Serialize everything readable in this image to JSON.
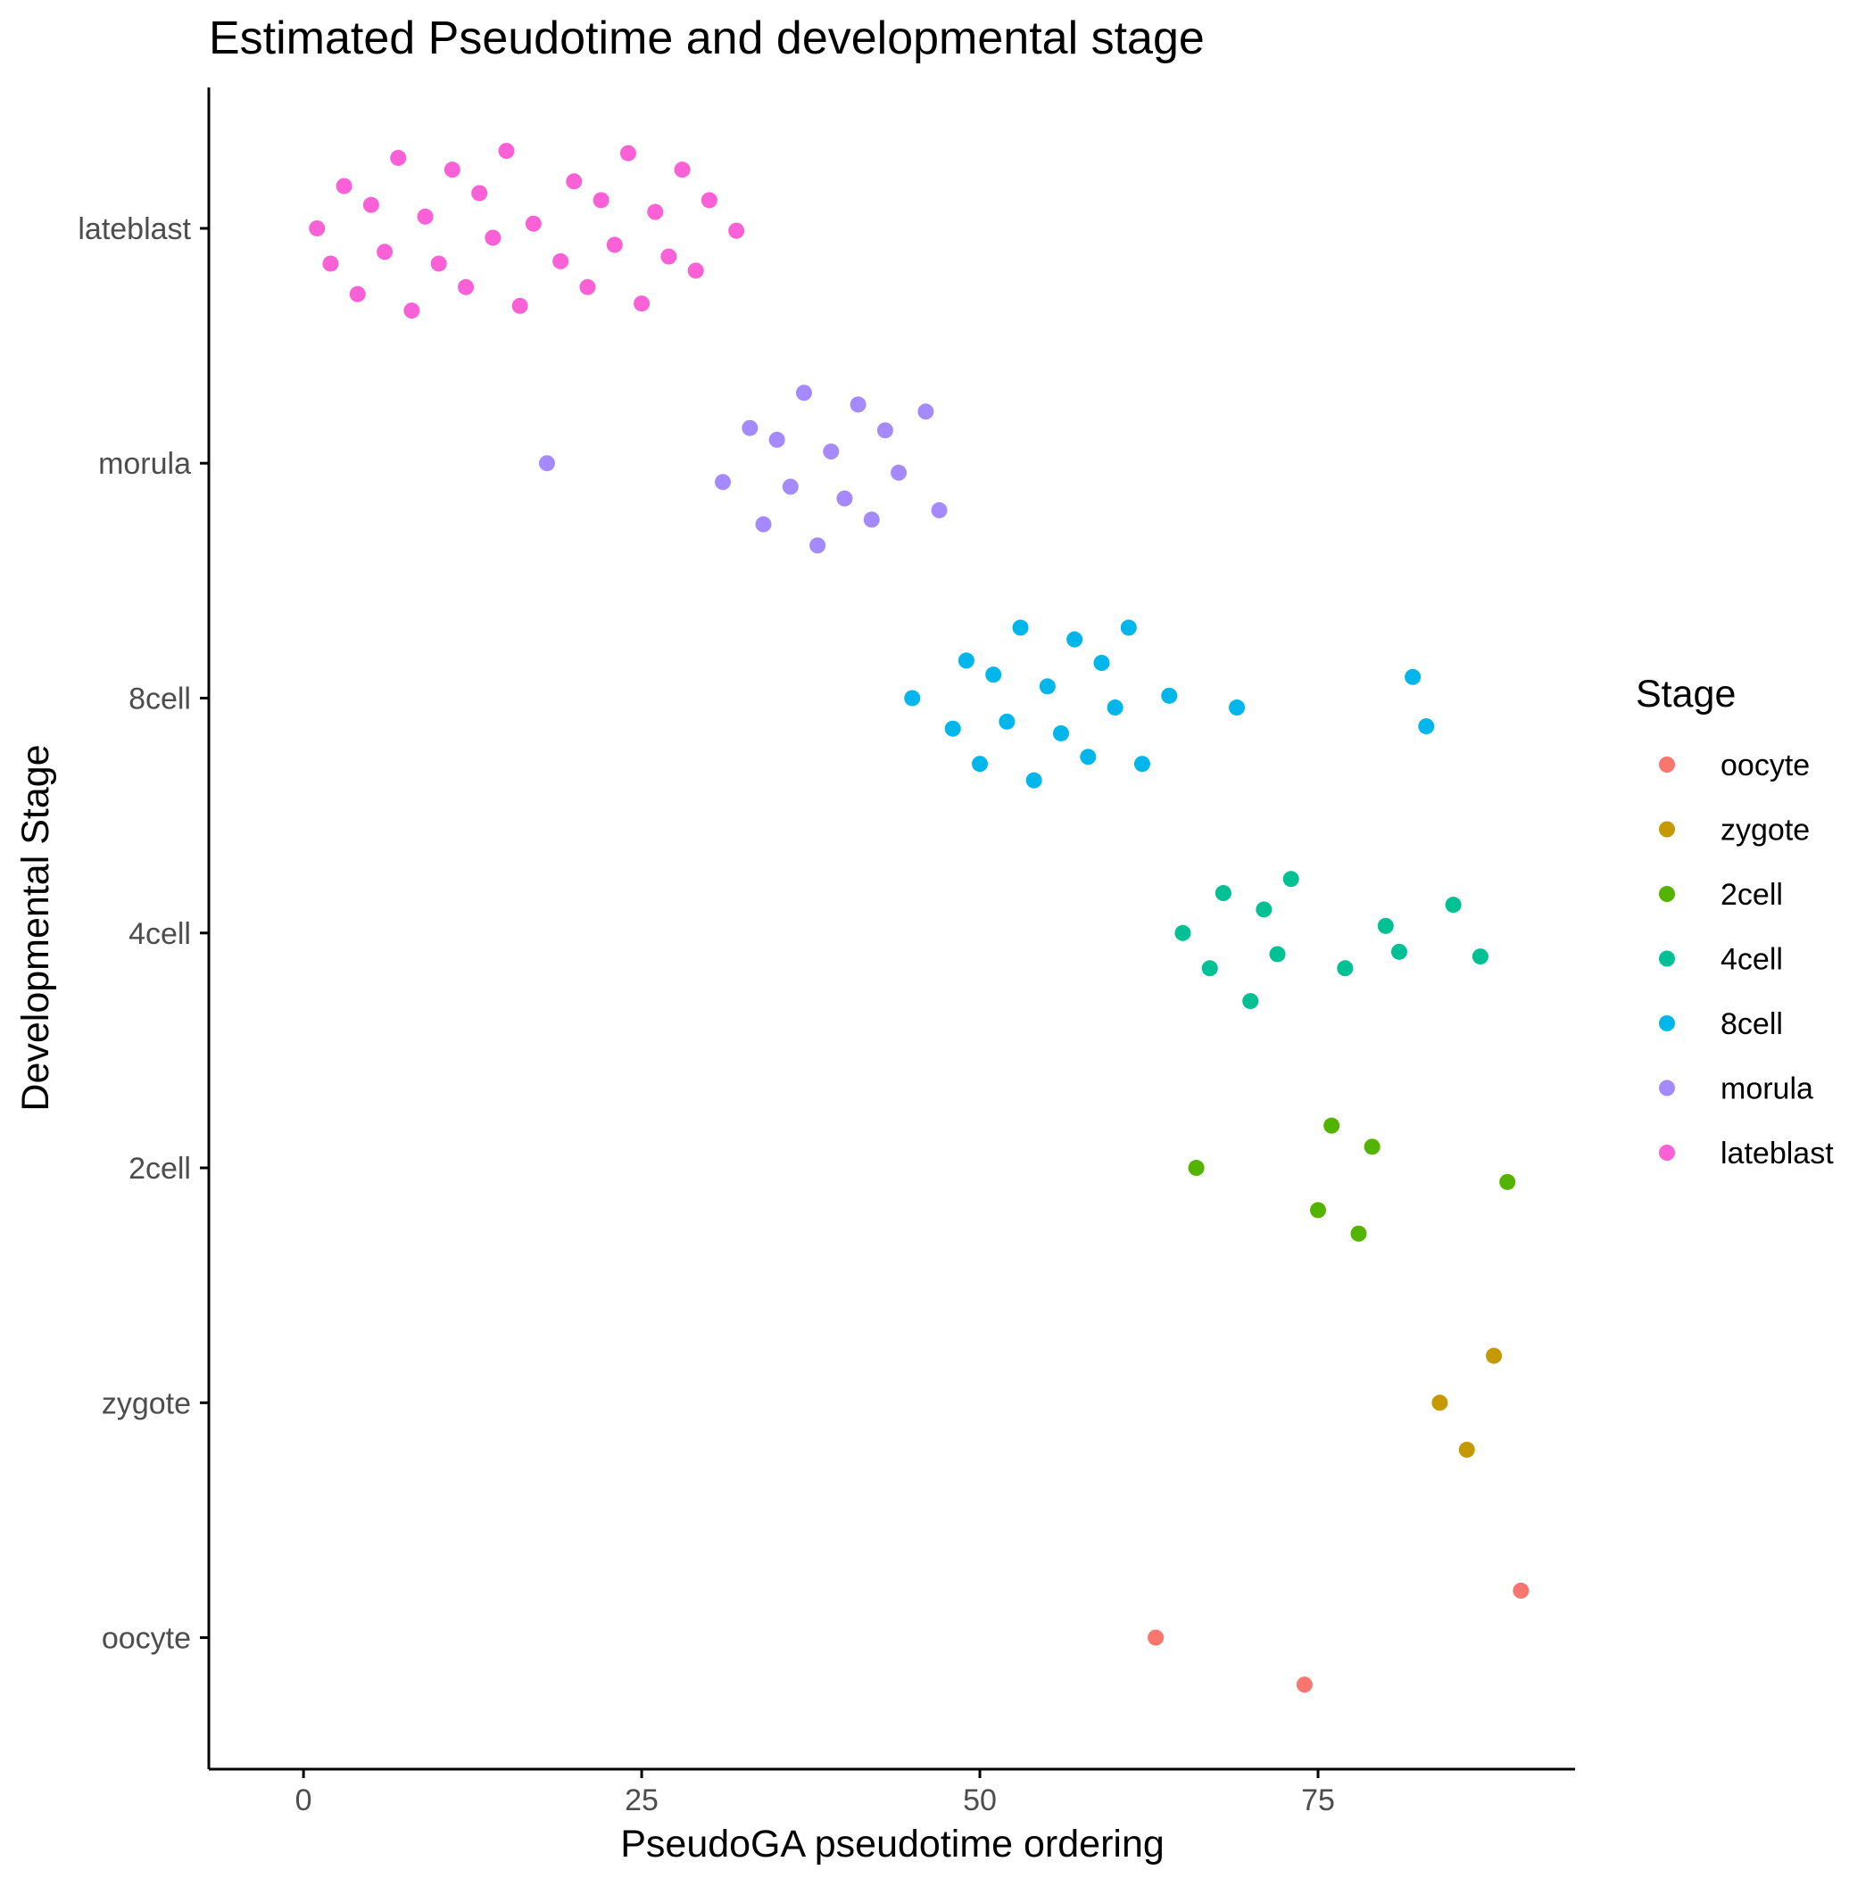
{
  "chart_data": {
    "type": "scatter",
    "title": "Estimated Pseudotime and developmental stage",
    "xlabel": "PseudoGA pseudotime ordering",
    "ylabel": "Developmental Stage",
    "xlim": [
      -7,
      94
    ],
    "x_ticks": [
      "0",
      "25",
      "50",
      "75"
    ],
    "x_tick_values": [
      0,
      25,
      50,
      75
    ],
    "y_categories": [
      "oocyte",
      "zygote",
      "2cell",
      "4cell",
      "8cell",
      "morula",
      "lateblast"
    ],
    "ylim": [
      0.44,
      7.6
    ],
    "grid": false,
    "legend": {
      "title": "Stage",
      "position": "right",
      "entries": [
        "oocyte",
        "zygote",
        "2cell",
        "4cell",
        "8cell",
        "morula",
        "lateblast"
      ]
    },
    "series": [
      {
        "name": "oocyte",
        "color": "#F8766D",
        "points": [
          {
            "x": 63,
            "y": 1.0
          },
          {
            "x": 74,
            "y": 0.8
          },
          {
            "x": 90,
            "y": 1.2
          }
        ]
      },
      {
        "name": "zygote",
        "color": "#C49A00",
        "points": [
          {
            "x": 84,
            "y": 2.0
          },
          {
            "x": 86,
            "y": 1.8
          },
          {
            "x": 88,
            "y": 2.2
          }
        ]
      },
      {
        "name": "2cell",
        "color": "#53B400",
        "points": [
          {
            "x": 66,
            "y": 3.0
          },
          {
            "x": 75,
            "y": 2.82
          },
          {
            "x": 76,
            "y": 3.18
          },
          {
            "x": 78,
            "y": 2.72
          },
          {
            "x": 79,
            "y": 3.09
          },
          {
            "x": 89,
            "y": 2.94
          }
        ]
      },
      {
        "name": "4cell",
        "color": "#00C094",
        "points": [
          {
            "x": 65,
            "y": 4.0
          },
          {
            "x": 67,
            "y": 3.85
          },
          {
            "x": 68,
            "y": 4.17
          },
          {
            "x": 70,
            "y": 3.71
          },
          {
            "x": 71,
            "y": 4.1
          },
          {
            "x": 72,
            "y": 3.91
          },
          {
            "x": 73,
            "y": 4.23
          },
          {
            "x": 77,
            "y": 3.85
          },
          {
            "x": 80,
            "y": 4.03
          },
          {
            "x": 81,
            "y": 3.92
          },
          {
            "x": 85,
            "y": 4.12
          },
          {
            "x": 87,
            "y": 3.9
          }
        ]
      },
      {
        "name": "8cell",
        "color": "#00B6EB",
        "points": [
          {
            "x": 45,
            "y": 5.0
          },
          {
            "x": 48,
            "y": 4.87
          },
          {
            "x": 49,
            "y": 5.16
          },
          {
            "x": 50,
            "y": 4.72
          },
          {
            "x": 51,
            "y": 5.1
          },
          {
            "x": 52,
            "y": 4.9
          },
          {
            "x": 53,
            "y": 5.3
          },
          {
            "x": 54,
            "y": 4.65
          },
          {
            "x": 55,
            "y": 5.05
          },
          {
            "x": 56,
            "y": 4.85
          },
          {
            "x": 57,
            "y": 5.25
          },
          {
            "x": 58,
            "y": 4.75
          },
          {
            "x": 59,
            "y": 5.15
          },
          {
            "x": 60,
            "y": 4.96
          },
          {
            "x": 61,
            "y": 5.3
          },
          {
            "x": 62,
            "y": 4.72
          },
          {
            "x": 64,
            "y": 5.01
          },
          {
            "x": 69,
            "y": 4.96
          },
          {
            "x": 82,
            "y": 5.09
          },
          {
            "x": 83,
            "y": 4.88
          }
        ]
      },
      {
        "name": "morula",
        "color": "#A58AFF",
        "points": [
          {
            "x": 18,
            "y": 6.0
          },
          {
            "x": 31,
            "y": 5.92
          },
          {
            "x": 33,
            "y": 6.15
          },
          {
            "x": 34,
            "y": 5.74
          },
          {
            "x": 35,
            "y": 6.1
          },
          {
            "x": 36,
            "y": 5.9
          },
          {
            "x": 37,
            "y": 6.3
          },
          {
            "x": 38,
            "y": 5.65
          },
          {
            "x": 39,
            "y": 6.05
          },
          {
            "x": 40,
            "y": 5.85
          },
          {
            "x": 41,
            "y": 6.25
          },
          {
            "x": 42,
            "y": 5.76
          },
          {
            "x": 43,
            "y": 6.14
          },
          {
            "x": 44,
            "y": 5.96
          },
          {
            "x": 46,
            "y": 6.22
          },
          {
            "x": 47,
            "y": 5.8
          }
        ]
      },
      {
        "name": "lateblast",
        "color": "#FB61D7",
        "points": [
          {
            "x": 1,
            "y": 7.0
          },
          {
            "x": 2,
            "y": 6.85
          },
          {
            "x": 3,
            "y": 7.18
          },
          {
            "x": 4,
            "y": 6.72
          },
          {
            "x": 5,
            "y": 7.1
          },
          {
            "x": 6,
            "y": 6.9
          },
          {
            "x": 7,
            "y": 7.3
          },
          {
            "x": 8,
            "y": 6.65
          },
          {
            "x": 9,
            "y": 7.05
          },
          {
            "x": 10,
            "y": 6.85
          },
          {
            "x": 11,
            "y": 7.25
          },
          {
            "x": 12,
            "y": 6.75
          },
          {
            "x": 13,
            "y": 7.15
          },
          {
            "x": 14,
            "y": 6.96
          },
          {
            "x": 15,
            "y": 7.33
          },
          {
            "x": 16,
            "y": 6.67
          },
          {
            "x": 17,
            "y": 7.02
          },
          {
            "x": 19,
            "y": 6.86
          },
          {
            "x": 20,
            "y": 7.2
          },
          {
            "x": 21,
            "y": 6.75
          },
          {
            "x": 22,
            "y": 7.12
          },
          {
            "x": 23,
            "y": 6.93
          },
          {
            "x": 24,
            "y": 7.32
          },
          {
            "x": 25,
            "y": 6.68
          },
          {
            "x": 26,
            "y": 7.07
          },
          {
            "x": 27,
            "y": 6.88
          },
          {
            "x": 28,
            "y": 7.25
          },
          {
            "x": 29,
            "y": 6.82
          },
          {
            "x": 30,
            "y": 7.12
          },
          {
            "x": 32,
            "y": 6.99
          }
        ]
      }
    ]
  }
}
